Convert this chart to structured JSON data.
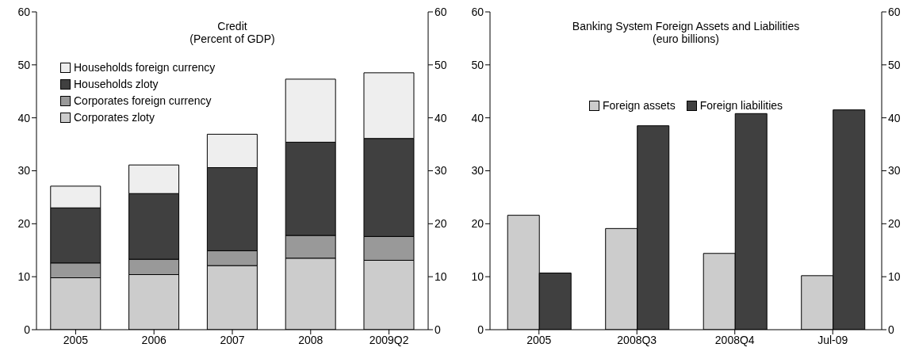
{
  "chart_data": [
    {
      "type": "bar",
      "title": "Credit\n(Percent of GDP)",
      "stacked": true,
      "categories": [
        "2005",
        "2006",
        "2007",
        "2008",
        "2009Q2"
      ],
      "series": [
        {
          "name": "Corporates zloty",
          "color": "#cccccc",
          "values": [
            9.8,
            10.4,
            12.1,
            13.5,
            13.1
          ]
        },
        {
          "name": "Corporates foreign currency",
          "color": "#999999",
          "values": [
            2.8,
            2.9,
            2.8,
            4.3,
            4.5
          ]
        },
        {
          "name": "Households zloty",
          "color": "#404040",
          "values": [
            10.4,
            12.4,
            15.7,
            17.6,
            18.5
          ]
        },
        {
          "name": "Households foreign currency",
          "color": "#eeeeee",
          "values": [
            4.1,
            5.4,
            6.3,
            11.9,
            12.4
          ]
        }
      ],
      "ylim": [
        0,
        60
      ],
      "yticks": [
        0,
        10,
        20,
        30,
        40,
        50,
        60
      ],
      "y2lim": [
        0,
        60
      ],
      "y2ticks": [
        0,
        10,
        20,
        30,
        40,
        50,
        60
      ],
      "legend": "top left",
      "grid": false
    },
    {
      "type": "bar",
      "title": "Banking System Foreign Assets and Liabilities\n(euro billions)",
      "categories": [
        "2005",
        "2008Q3",
        "2008Q4",
        "Jul-09"
      ],
      "series": [
        {
          "name": "Foreign assets",
          "color": "#cccccc",
          "values": [
            21.6,
            19.1,
            14.4,
            10.2
          ]
        },
        {
          "name": "Foreign liabilities",
          "color": "#404040",
          "values": [
            10.7,
            38.5,
            40.8,
            41.5
          ]
        }
      ],
      "ylim": [
        0,
        60
      ],
      "yticks": [
        0,
        10,
        20,
        30,
        40,
        50,
        60
      ],
      "y2lim": [
        0,
        60
      ],
      "y2ticks": [
        0,
        10,
        20,
        30,
        40,
        50,
        60
      ],
      "legend": "top",
      "grid": false
    }
  ]
}
